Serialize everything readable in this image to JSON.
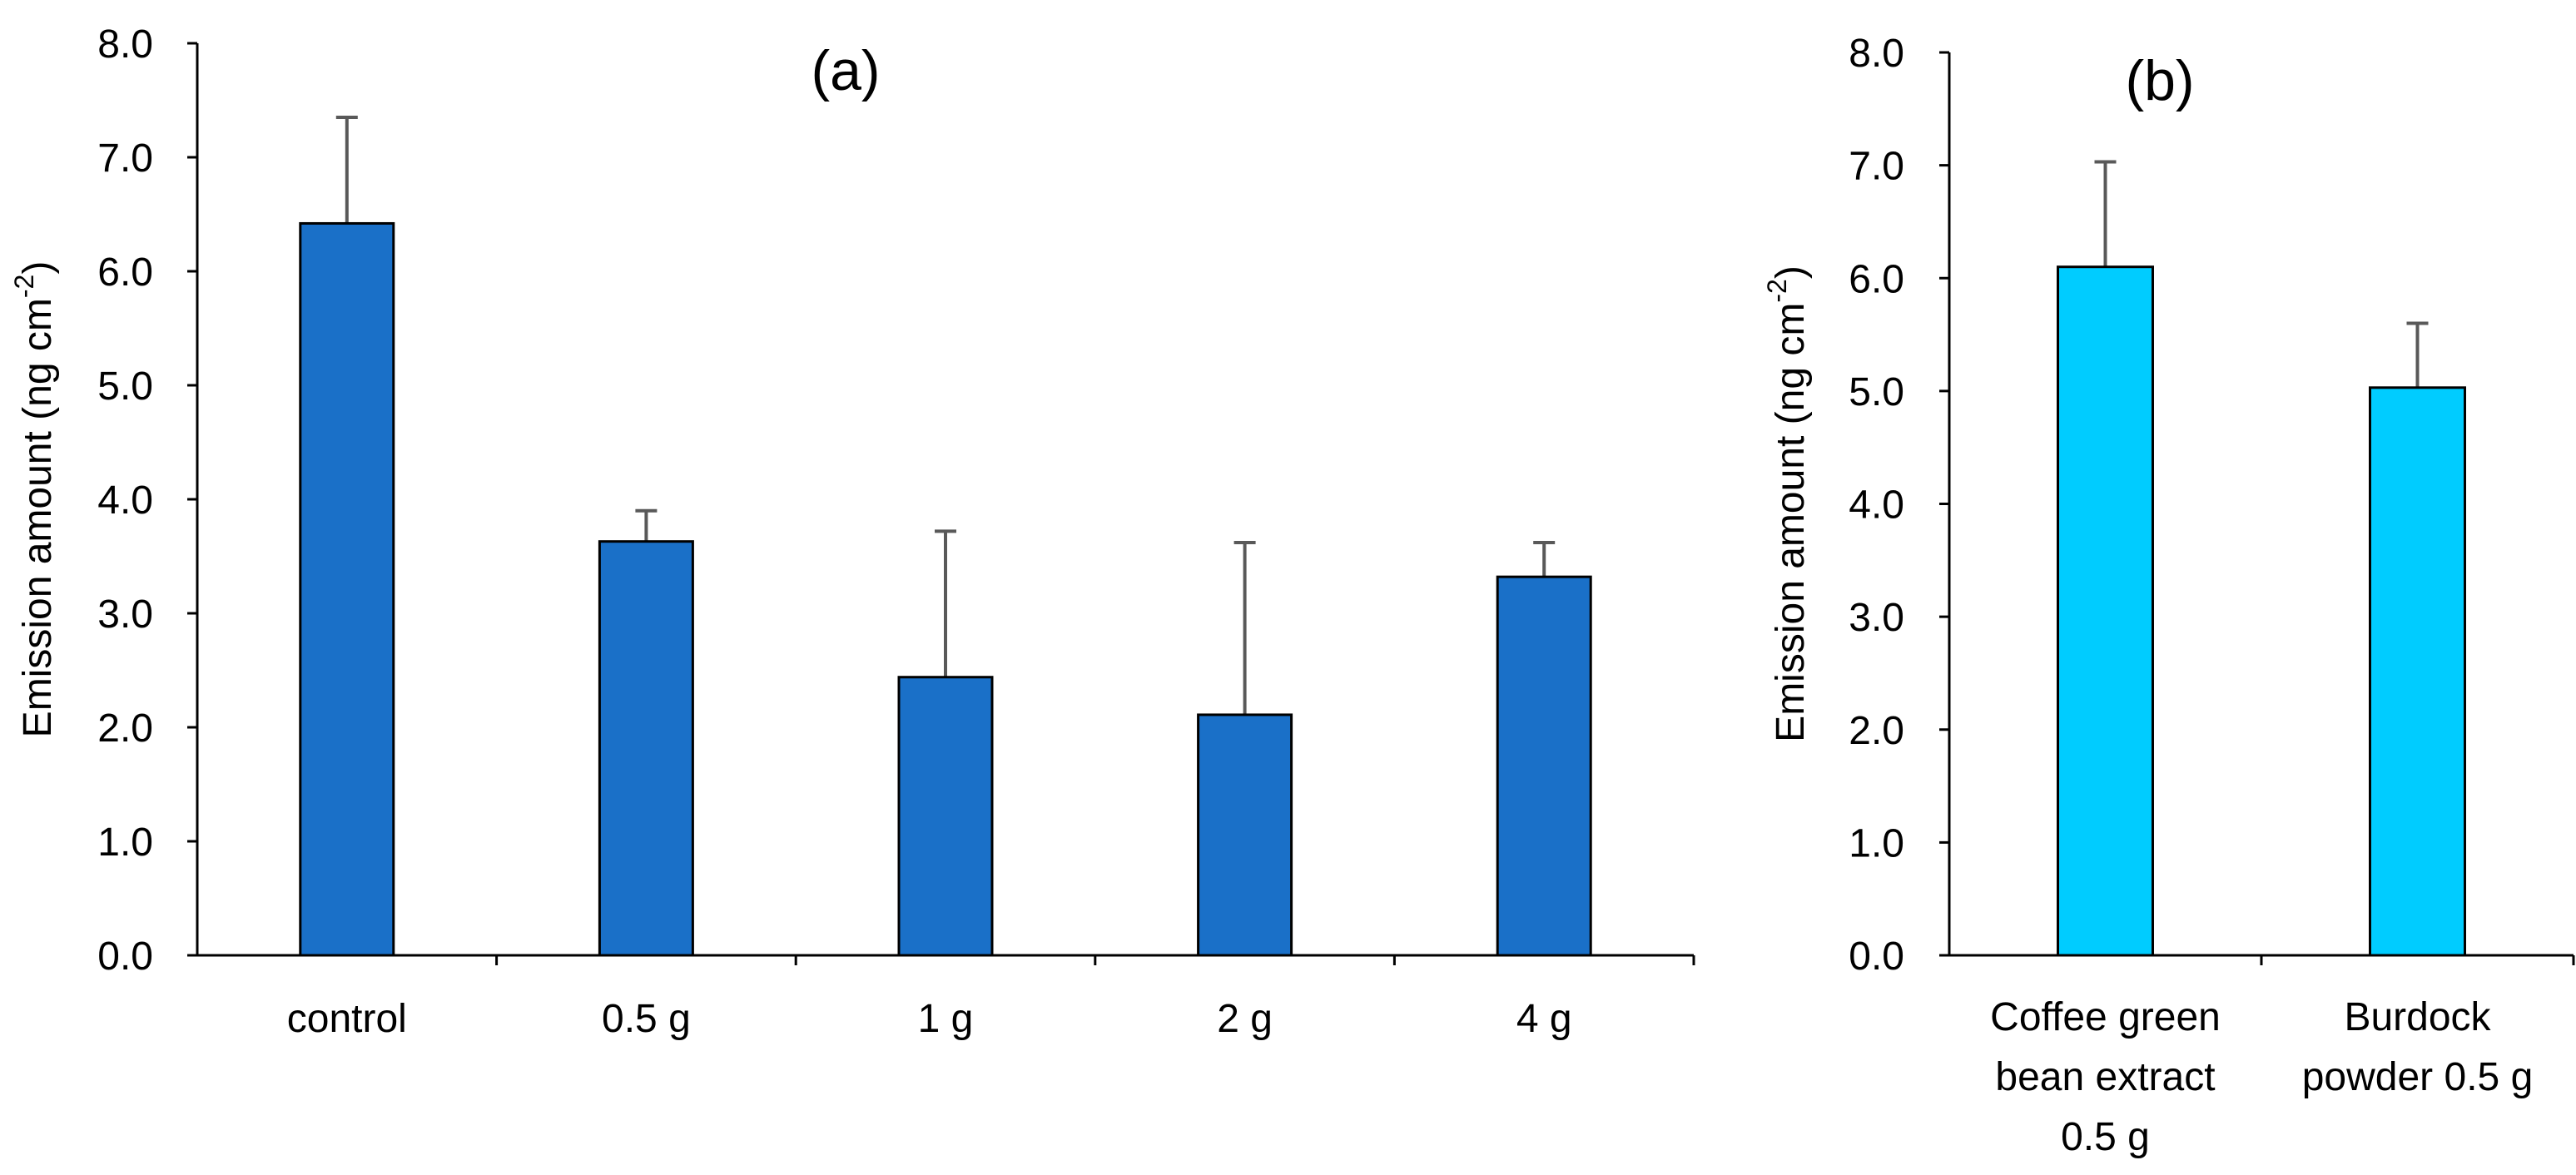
{
  "chart_data": [
    {
      "type": "bar",
      "panel_label": "(a)",
      "ylabel": "Emission amount (ng cm",
      "ylabel_sup": "-2",
      "ylabel_close": ")",
      "ylim": [
        0,
        8
      ],
      "yticks": [
        "0.0",
        "1.0",
        "2.0",
        "3.0",
        "4.0",
        "5.0",
        "6.0",
        "7.0",
        "8.0"
      ],
      "categories": [
        "control",
        "0.5 g",
        "1 g",
        "2 g",
        "4 g"
      ],
      "values": [
        6.42,
        3.63,
        2.44,
        2.11,
        3.32
      ],
      "errors": [
        0.93,
        0.27,
        1.28,
        1.51,
        0.3
      ],
      "color": "#1a70c8",
      "grid": false
    },
    {
      "type": "bar",
      "panel_label": "(b)",
      "ylabel": "Emission amount (ng cm",
      "ylabel_sup": "-2",
      "ylabel_close": ")",
      "ylim": [
        0,
        8
      ],
      "yticks": [
        "0.0",
        "1.0",
        "2.0",
        "3.0",
        "4.0",
        "5.0",
        "6.0",
        "7.0",
        "8.0"
      ],
      "categories": [
        [
          "Coffee green",
          "bean extract",
          "0.5 g"
        ],
        [
          "Burdock",
          "powder 0.5 g"
        ]
      ],
      "values": [
        6.1,
        5.03
      ],
      "errors": [
        0.93,
        0.57
      ],
      "color": "#00ccff",
      "grid": false
    }
  ]
}
